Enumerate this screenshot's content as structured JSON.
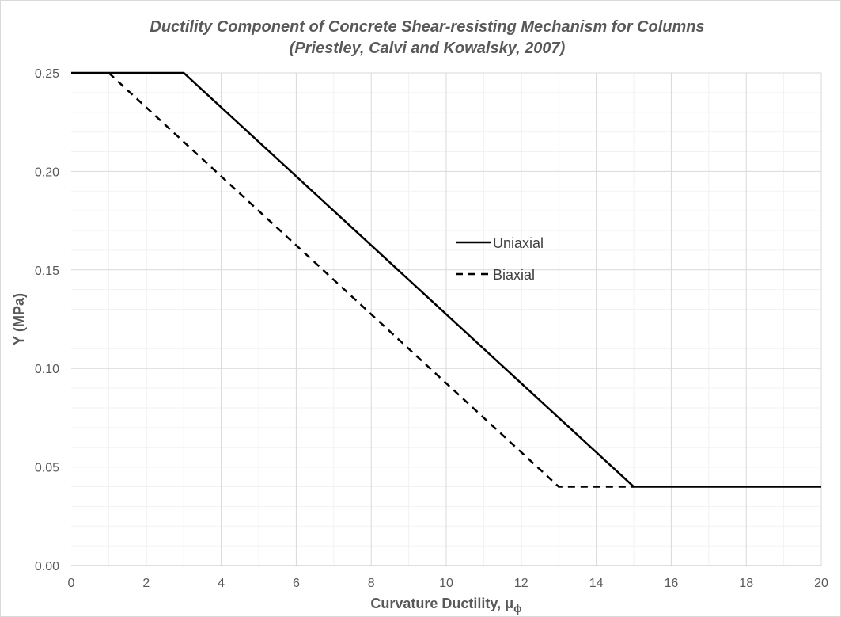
{
  "chart_data": {
    "type": "line",
    "title": "Ductility Component of Concrete Shear-resisting Mechanism for Columns",
    "subtitle": "(Priestley, Calvi and Kowalsky, 2007)",
    "xlabel": "Curvature Ductility, μ",
    "xlabel_subscript": "ϕ",
    "ylabel": "Υ (MPa)",
    "xlim": [
      0,
      20
    ],
    "ylim": [
      0,
      0.25
    ],
    "xticks": [
      "0",
      "2",
      "4",
      "6",
      "8",
      "10",
      "12",
      "14",
      "16",
      "18",
      "20"
    ],
    "yticks": [
      "0.00",
      "0.05",
      "0.10",
      "0.15",
      "0.20",
      "0.25"
    ],
    "grid": true,
    "legend_position": "center-right",
    "series": [
      {
        "name": "Uniaxial",
        "style": "solid",
        "color": "#000000",
        "x": [
          0,
          3,
          15,
          20
        ],
        "y": [
          0.25,
          0.25,
          0.04,
          0.04
        ]
      },
      {
        "name": "Biaxial",
        "style": "dashed",
        "color": "#000000",
        "x": [
          1,
          13,
          15
        ],
        "y": [
          0.25,
          0.04,
          0.04
        ]
      }
    ]
  }
}
